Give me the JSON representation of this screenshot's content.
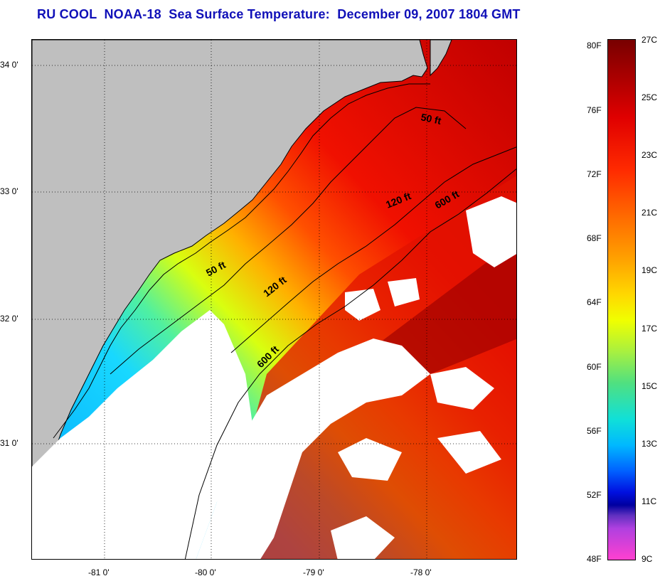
{
  "title": "RU COOL  NOAA-18  Sea Surface Temperature:  December 09, 2007 1804 GMT",
  "map": {
    "latitude_labels": [
      "34 0'",
      "33 0'",
      "32 0'",
      "31 0'"
    ],
    "longitude_labels": [
      "-81 0'",
      "-80 0'",
      "-79 0'",
      "-78 0'"
    ],
    "contour_labels": [
      "50 ft",
      "120 ft",
      "600 ft",
      "50 ft",
      "120 ft",
      "600 ft"
    ],
    "land_color": "#bfbfbf",
    "cloud_color": "#ffffff"
  },
  "colorbar": {
    "fahrenheit": [
      "80F",
      "76F",
      "72F",
      "68F",
      "64F",
      "60F",
      "56F",
      "52F",
      "48F"
    ],
    "celsius": [
      "27C",
      "25C",
      "23C",
      "21C",
      "19C",
      "17C",
      "15C",
      "13C",
      "11C",
      "9C"
    ]
  }
}
